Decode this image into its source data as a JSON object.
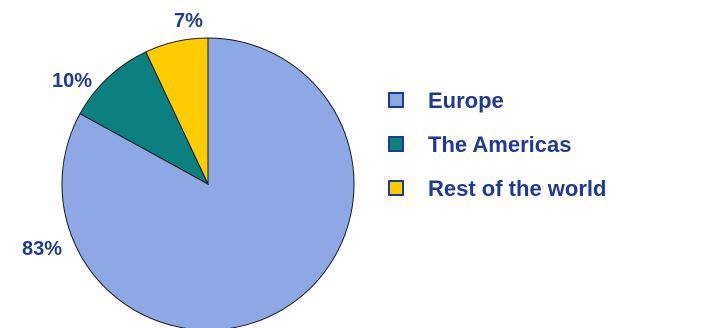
{
  "chart_data": {
    "type": "pie",
    "categories": [
      "Europe",
      "The Americas",
      "Rest of the world"
    ],
    "values": [
      83,
      10,
      7
    ],
    "labels": [
      "83%",
      "10%",
      "7%"
    ],
    "colors": [
      "#8ea8e6",
      "#0b8080",
      "#ffcc00"
    ],
    "legend_position": "right",
    "start_angle": "12 o'clock",
    "direction": "clockwise",
    "slice_outline_color": "#1a1a1a"
  }
}
